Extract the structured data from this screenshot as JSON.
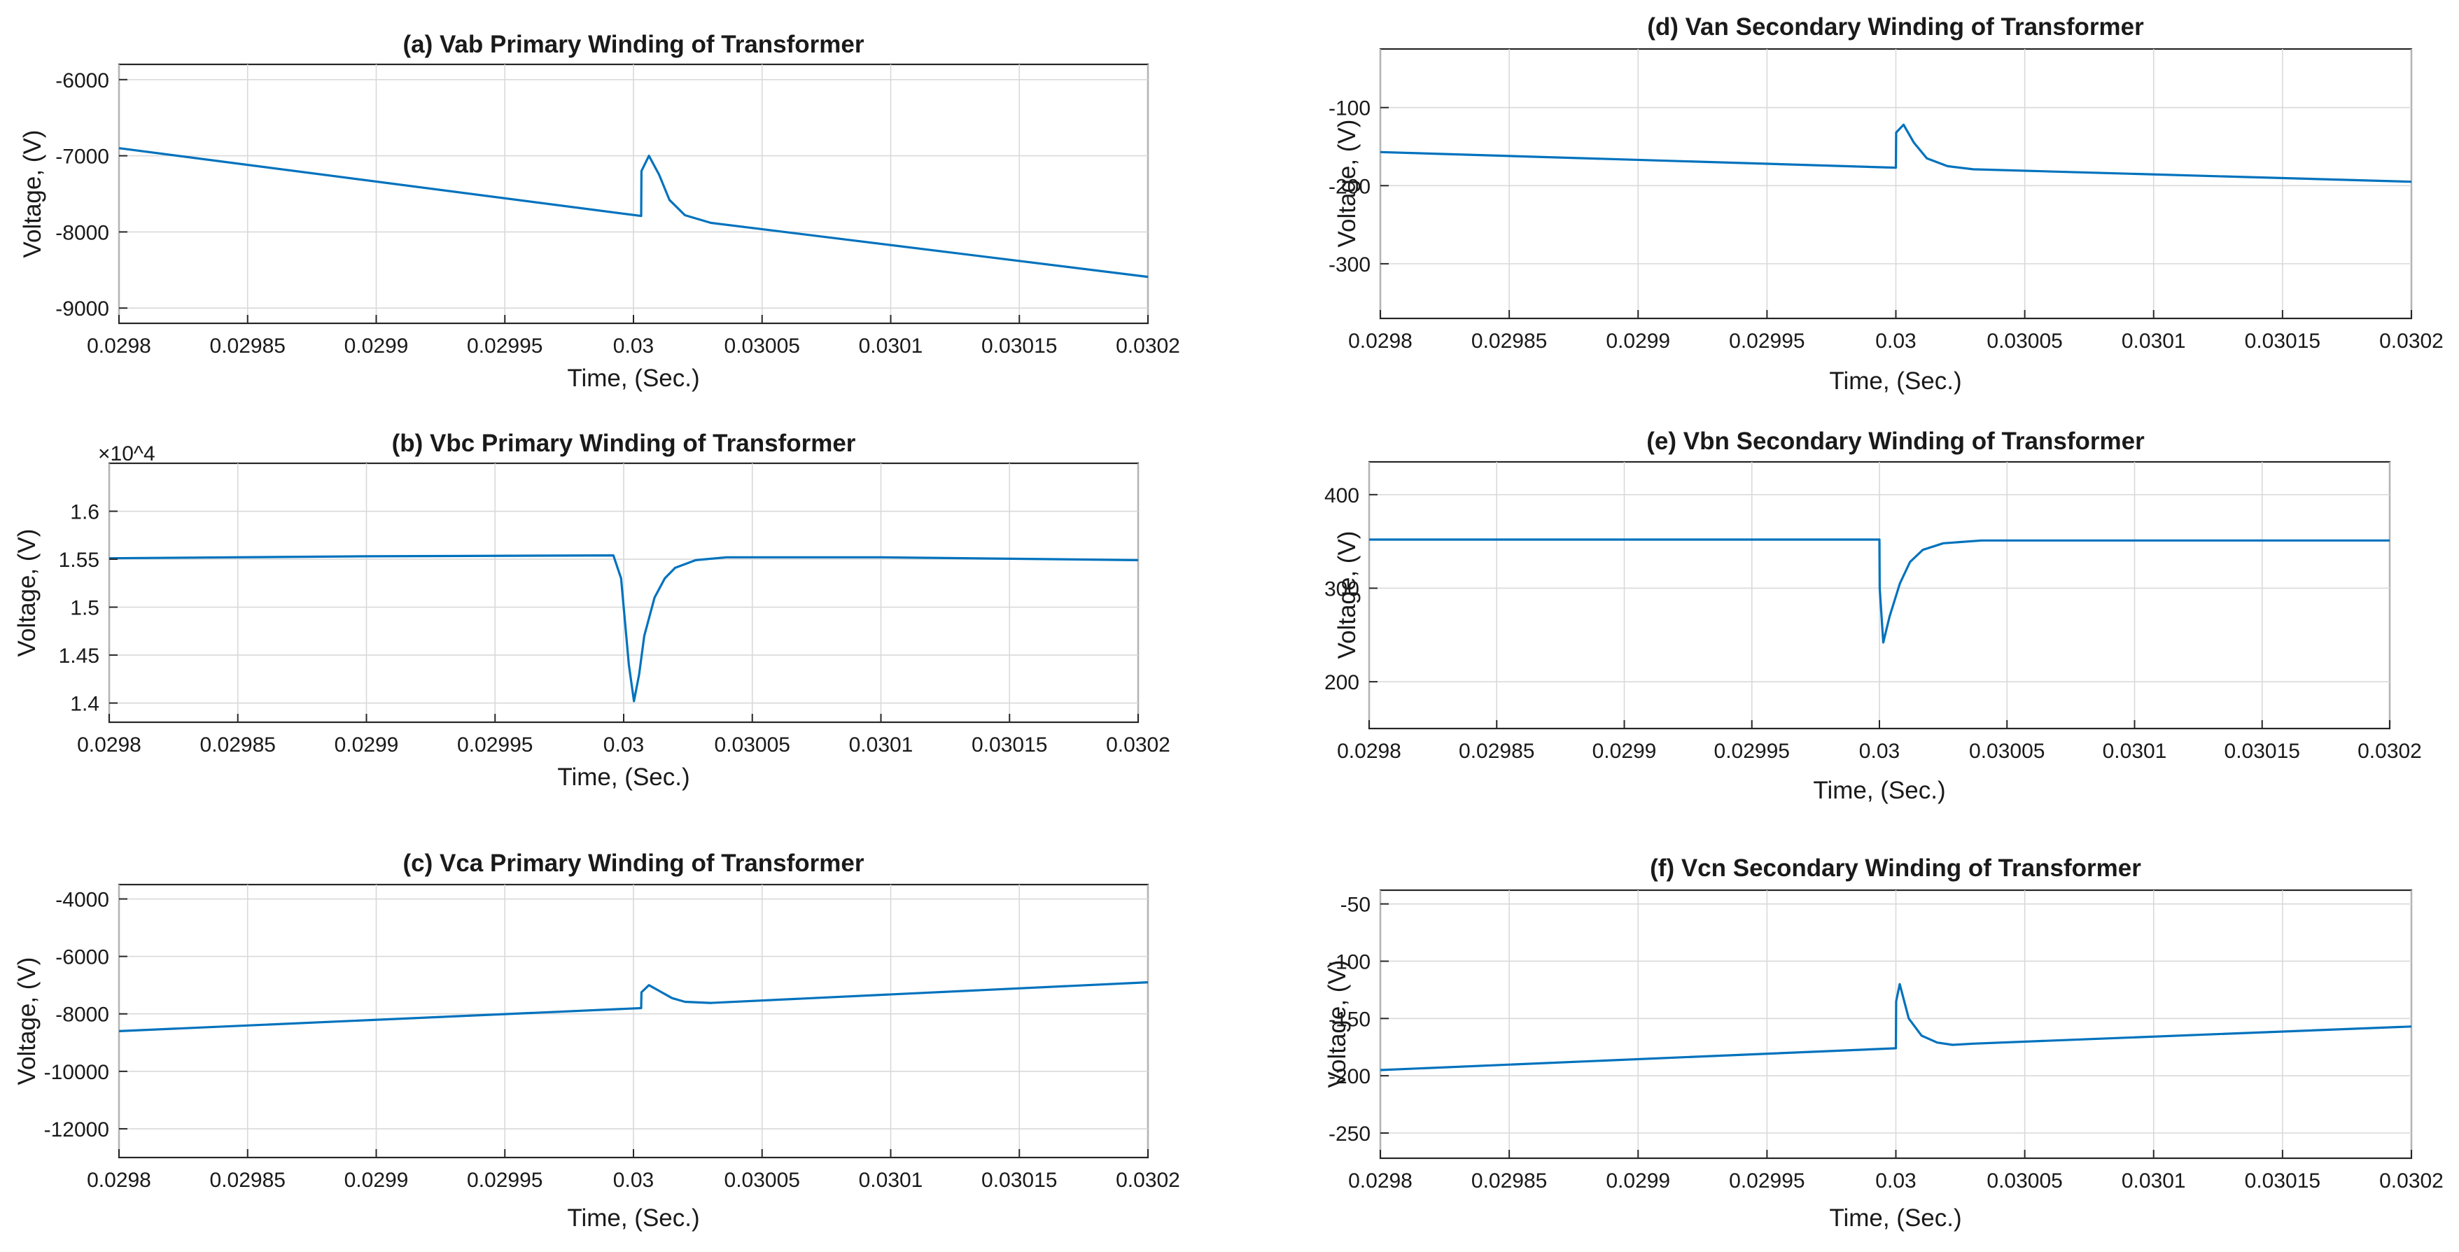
{
  "chart_data": [
    {
      "type": "line",
      "title": "(a) Vab Primary Winding of Transformer",
      "xlabel": "Time, (Sec.)",
      "ylabel": "Voltage, (V)",
      "xlim": [
        0.0298,
        0.0302
      ],
      "ylim": [
        -9200,
        -5800
      ],
      "xticks": [
        0.0298,
        0.02985,
        0.0299,
        0.02995,
        0.03,
        0.03005,
        0.0301,
        0.03015,
        0.0302
      ],
      "xtick_labels": [
        "0.0298",
        "0.02985",
        "0.0299",
        "0.02995",
        "0.03",
        "0.03005",
        "0.0301",
        "0.03015",
        "0.0302"
      ],
      "yticks": [
        -9000,
        -8000,
        -7000,
        -6000
      ],
      "ytick_labels": [
        "-9000",
        "-8000",
        "-7000",
        "-6000"
      ],
      "grid": true,
      "series": [
        {
          "name": "Vab",
          "x": [
            0.0298,
            0.030003,
            0.0300031,
            0.030006,
            0.03001,
            0.030014,
            0.03002,
            0.03003,
            0.0302
          ],
          "y": [
            -6900,
            -7790,
            -7200,
            -7000,
            -7250,
            -7580,
            -7780,
            -7880,
            -8590
          ]
        }
      ]
    },
    {
      "type": "line",
      "title": "(b) Vbc Primary Winding of Transformer",
      "xlabel": "Time, (Sec.)",
      "ylabel": "Voltage, (V)",
      "xlim": [
        0.0298,
        0.0302
      ],
      "ylim": [
        1.38,
        1.65
      ],
      "exponent": "×10^4",
      "xticks": [
        0.0298,
        0.02985,
        0.0299,
        0.02995,
        0.03,
        0.03005,
        0.0301,
        0.03015,
        0.0302
      ],
      "xtick_labels": [
        "0.0298",
        "0.02985",
        "0.0299",
        "0.02995",
        "0.03",
        "0.03005",
        "0.0301",
        "0.03015",
        "0.0302"
      ],
      "yticks": [
        1.4,
        1.45,
        1.5,
        1.55,
        1.6
      ],
      "ytick_labels": [
        "1.4",
        "1.45",
        "1.5",
        "1.55",
        "1.6"
      ],
      "grid": true,
      "series": [
        {
          "name": "Vbc",
          "x": [
            0.0298,
            0.0299,
            0.029996,
            0.029999,
            0.030002,
            0.030004,
            0.030006,
            0.030008,
            0.030012,
            0.030016,
            0.03002,
            0.030028,
            0.03004,
            0.0301,
            0.0302
          ],
          "y": [
            1.551,
            1.553,
            1.554,
            1.53,
            1.44,
            1.402,
            1.43,
            1.47,
            1.51,
            1.53,
            1.541,
            1.549,
            1.552,
            1.552,
            1.549
          ]
        }
      ]
    },
    {
      "type": "line",
      "title": "(c) Vca Primary Winding of Transformer",
      "xlabel": "Time, (Sec.)",
      "ylabel": "Voltage, (V)",
      "xlim": [
        0.0298,
        0.0302
      ],
      "ylim": [
        -13000,
        -3500
      ],
      "xticks": [
        0.0298,
        0.02985,
        0.0299,
        0.02995,
        0.03,
        0.03005,
        0.0301,
        0.03015,
        0.0302
      ],
      "xtick_labels": [
        "0.0298",
        "0.02985",
        "0.0299",
        "0.02995",
        "0.03",
        "0.03005",
        "0.0301",
        "0.03015",
        "0.0302"
      ],
      "yticks": [
        -12000,
        -10000,
        -8000,
        -6000,
        -4000
      ],
      "ytick_labels": [
        "-12000",
        "-10000",
        "-8000",
        "-6000",
        "-4000"
      ],
      "grid": true,
      "series": [
        {
          "name": "Vca",
          "x": [
            0.0298,
            0.030003,
            0.0300031,
            0.030006,
            0.03001,
            0.030015,
            0.03002,
            0.03003,
            0.0302
          ],
          "y": [
            -8600,
            -7800,
            -7250,
            -7000,
            -7200,
            -7450,
            -7580,
            -7620,
            -6900
          ]
        }
      ]
    },
    {
      "type": "line",
      "title": "(d) Van Secondary Winding of Transformer",
      "xlabel": "Time, (Sec.)",
      "ylabel": "Voltage, (V)",
      "xlim": [
        0.0298,
        0.0302
      ],
      "ylim": [
        -370,
        -25
      ],
      "xticks": [
        0.0298,
        0.02985,
        0.0299,
        0.02995,
        0.03,
        0.03005,
        0.0301,
        0.03015,
        0.0302
      ],
      "xtick_labels": [
        "0.0298",
        "0.02985",
        "0.0299",
        "0.02995",
        "0.03",
        "0.03005",
        "0.0301",
        "0.03015",
        "0.0302"
      ],
      "yticks": [
        -300,
        -200,
        -100
      ],
      "ytick_labels": [
        "-300",
        "-200",
        "-100"
      ],
      "grid": true,
      "series": [
        {
          "name": "Van",
          "x": [
            0.0298,
            0.03,
            0.0300001,
            0.030003,
            0.030007,
            0.030012,
            0.03002,
            0.03003,
            0.0302
          ],
          "y": [
            -157,
            -177,
            -132,
            -122,
            -145,
            -165,
            -175,
            -179,
            -195
          ]
        }
      ]
    },
    {
      "type": "line",
      "title": "(e) Vbn Secondary Winding of Transformer",
      "xlabel": "Time, (Sec.)",
      "ylabel": "Voltage, (V)",
      "xlim": [
        0.0298,
        0.0302
      ],
      "ylim": [
        150,
        435
      ],
      "xticks": [
        0.0298,
        0.02985,
        0.0299,
        0.02995,
        0.03,
        0.03005,
        0.0301,
        0.03015,
        0.0302
      ],
      "xtick_labels": [
        "0.0298",
        "0.02985",
        "0.0299",
        "0.02995",
        "0.03",
        "0.03005",
        "0.0301",
        "0.03015",
        "0.0302"
      ],
      "yticks": [
        200,
        300,
        400
      ],
      "ytick_labels": [
        "200",
        "300",
        "400"
      ],
      "grid": true,
      "series": [
        {
          "name": "Vbn",
          "x": [
            0.0298,
            0.03,
            0.0300001,
            0.0300015,
            0.030004,
            0.030008,
            0.030012,
            0.030017,
            0.030025,
            0.03004,
            0.0302
          ],
          "y": [
            352,
            352,
            300,
            242,
            270,
            305,
            328,
            341,
            348,
            351,
            351
          ]
        }
      ]
    },
    {
      "type": "line",
      "title": "(f) Vcn Secondary Winding of Transformer",
      "xlabel": "Time, (Sec.)",
      "ylabel": "Voltage, (V)",
      "xlim": [
        0.0298,
        0.0302
      ],
      "ylim": [
        -272,
        -38
      ],
      "xticks": [
        0.0298,
        0.02985,
        0.0299,
        0.02995,
        0.03,
        0.03005,
        0.0301,
        0.03015,
        0.0302
      ],
      "xtick_labels": [
        "0.0298",
        "0.02985",
        "0.0299",
        "0.02995",
        "0.03",
        "0.03005",
        "0.0301",
        "0.03015",
        "0.0302"
      ],
      "yticks": [
        -250,
        -200,
        -150,
        -100,
        -50
      ],
      "ytick_labels": [
        "-250",
        "-200",
        "-150",
        "-100",
        "-50"
      ],
      "grid": true,
      "series": [
        {
          "name": "Vcn",
          "x": [
            0.0298,
            0.03,
            0.0300001,
            0.0300015,
            0.030005,
            0.03001,
            0.030016,
            0.030022,
            0.03003,
            0.0302
          ],
          "y": [
            -195,
            -176,
            -135,
            -120,
            -150,
            -165,
            -171,
            -173,
            -172,
            -157
          ]
        }
      ]
    }
  ]
}
